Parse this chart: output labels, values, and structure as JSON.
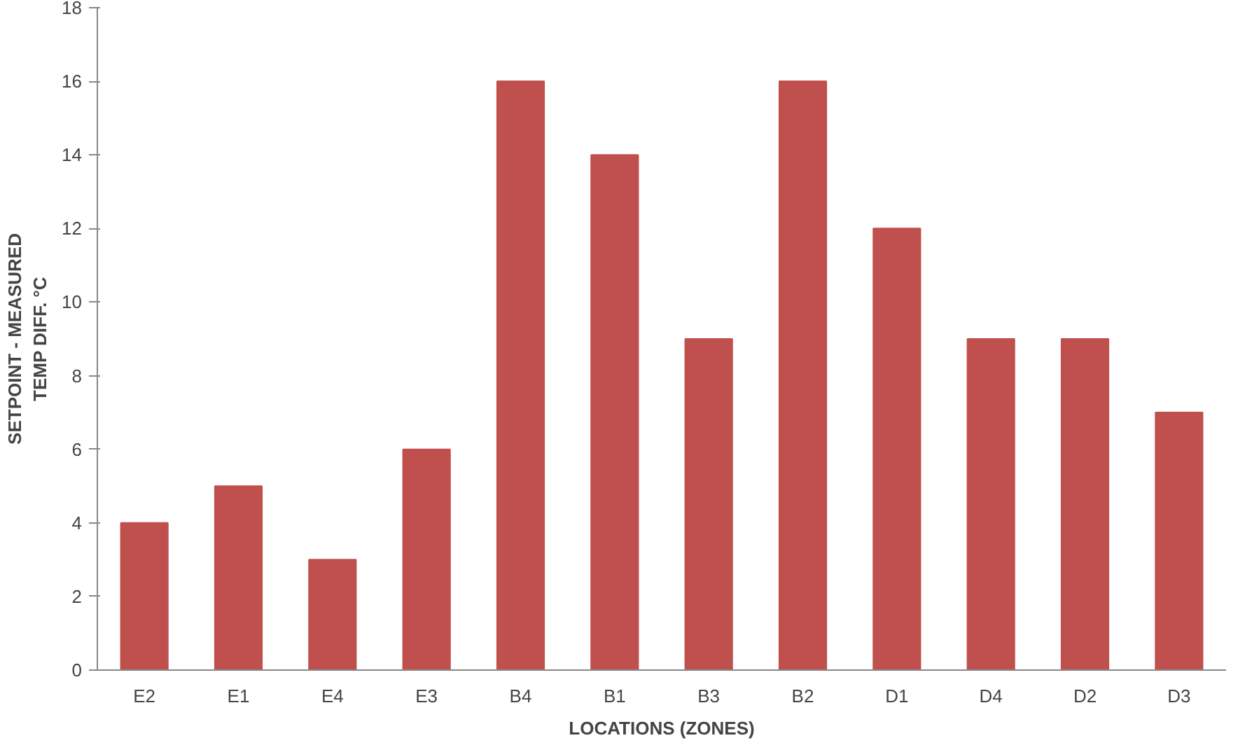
{
  "chart_data": {
    "type": "bar",
    "categories": [
      "E2",
      "E1",
      "E4",
      "E3",
      "B4",
      "B1",
      "B3",
      "B2",
      "D1",
      "D4",
      "D2",
      "D3"
    ],
    "values": [
      4,
      5,
      3,
      6,
      16,
      14,
      9,
      16,
      12,
      9,
      9,
      7
    ],
    "color": "#c0504d",
    "xlabel": "LOCATIONS (ZONES)",
    "ylabel": "SETPOINT - MEASURED\nTEMP DIFF. °C",
    "ylim": [
      0,
      18
    ],
    "yticks": [
      0,
      2,
      4,
      6,
      8,
      10,
      12,
      14,
      16,
      18
    ],
    "grid": false
  }
}
